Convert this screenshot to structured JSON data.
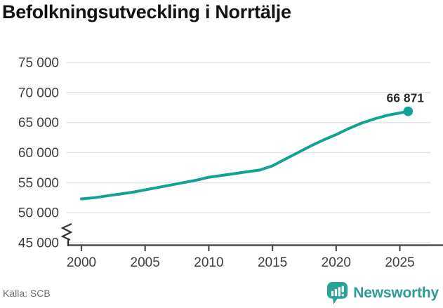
{
  "title": "Befolkningsutveckling i Norrtälje",
  "source": "Källa: SCB",
  "brand": {
    "name": "Newsworthy",
    "icon": "newsworthy-speech-bubble-chart-icon",
    "wordmark_color": "#2e9c93",
    "icon_color": "#2ba296"
  },
  "colors": {
    "line": "#12a193",
    "grid": "#e4e4e4",
    "axis": "#4d4d4d",
    "tick_text": "#3d3d3d",
    "end_label_text": "#2b2b2b",
    "break_mark": "#333333"
  },
  "chart_data": {
    "type": "line",
    "title": "Befolkningsutveckling i Norrtälje",
    "xlabel": "",
    "ylabel": "",
    "x": [
      2000,
      2001,
      2002,
      2003,
      2004,
      2005,
      2006,
      2007,
      2008,
      2009,
      2010,
      2011,
      2012,
      2013,
      2014,
      2015,
      2016,
      2017,
      2018,
      2019,
      2020,
      2021,
      2022,
      2023,
      2024,
      2025,
      2025.65
    ],
    "values": [
      52300,
      52500,
      52800,
      53100,
      53400,
      53800,
      54200,
      54600,
      55000,
      55400,
      55900,
      56200,
      56500,
      56800,
      57100,
      57800,
      58900,
      60000,
      61100,
      62100,
      63000,
      64000,
      64900,
      65600,
      66200,
      66600,
      66871
    ],
    "end_value": 66871,
    "end_label": "66 871",
    "x_ticks": [
      2000,
      2005,
      2010,
      2015,
      2020,
      2025
    ],
    "x_tick_labels": [
      "2000",
      "2005",
      "2010",
      "2015",
      "2020",
      "2025"
    ],
    "y_ticks": [
      45000,
      50000,
      55000,
      60000,
      65000,
      70000,
      75000
    ],
    "y_tick_labels": [
      "45 000",
      "50 000",
      "55 000",
      "60 000",
      "65 000",
      "70 000",
      "75 000"
    ],
    "ylim": [
      45000,
      75000
    ],
    "xlim": [
      1999,
      2027.5
    ],
    "y_axis_break": true,
    "grid": true,
    "legend": "none"
  }
}
